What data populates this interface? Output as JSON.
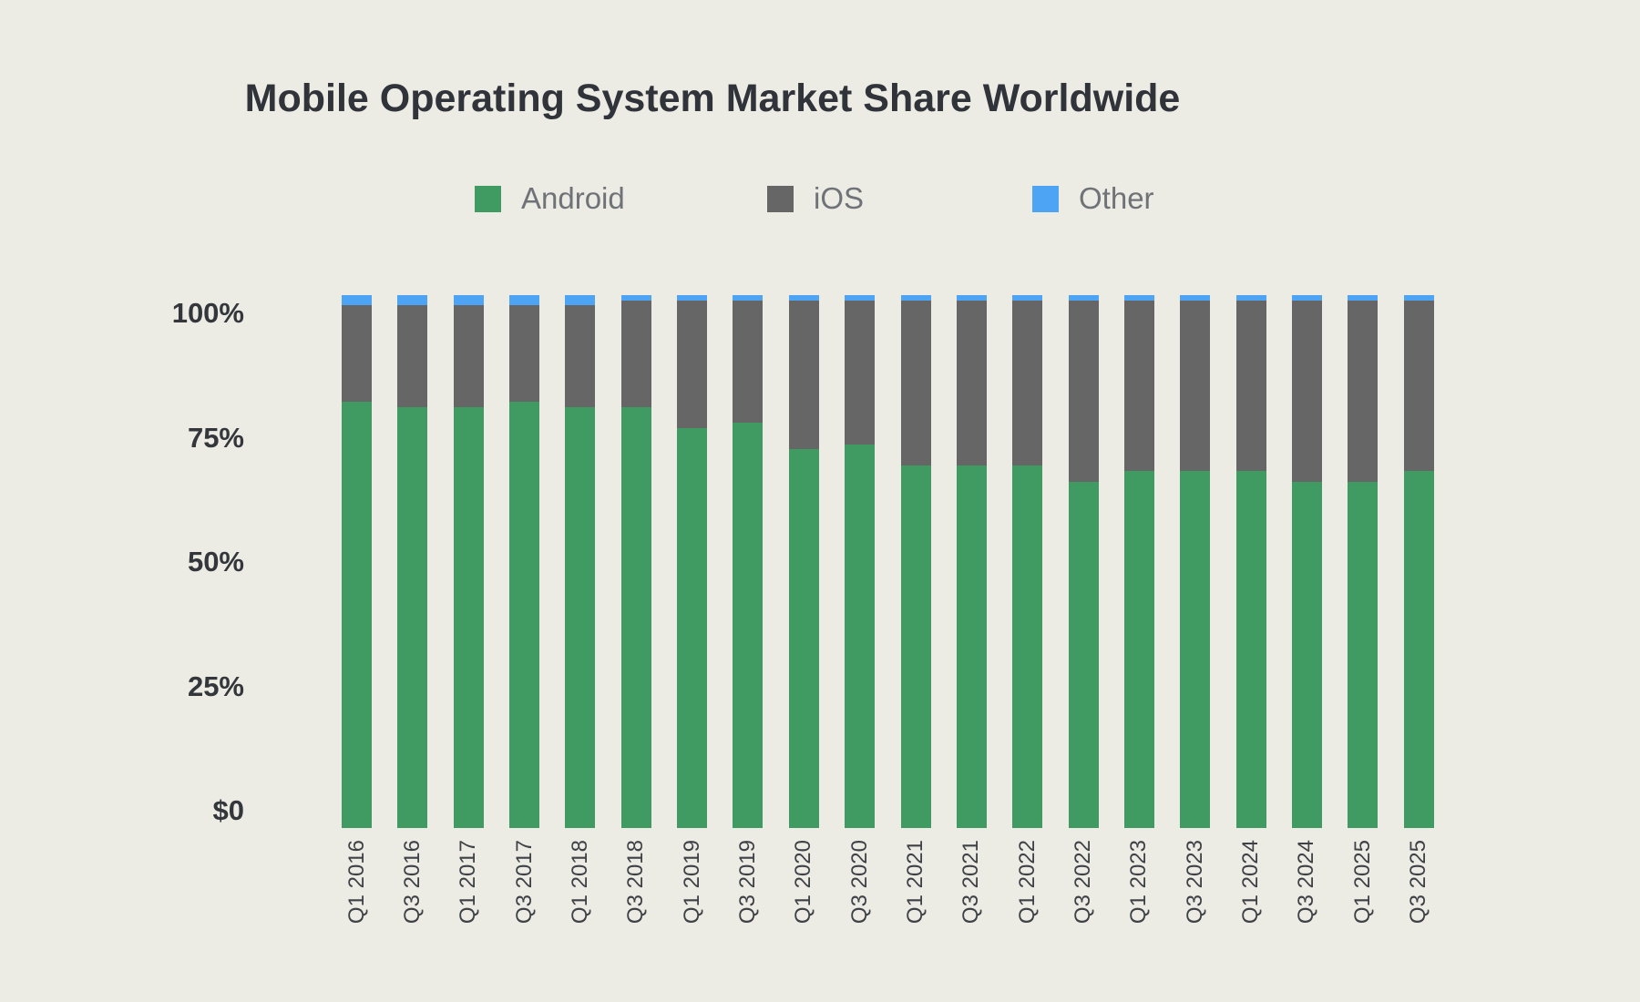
{
  "title": "Mobile Operating System Market Share Worldwide",
  "colors": {
    "background": "#ECEBE4",
    "android": "#3F9B62",
    "ios": "#666666",
    "other": "#4DA4F5"
  },
  "legend": [
    {
      "label": "Android",
      "color": "#3F9B62"
    },
    {
      "label": "iOS",
      "color": "#666666"
    },
    {
      "label": "Other",
      "color": "#4DA4F5"
    }
  ],
  "y_axis": {
    "ticks": [
      {
        "label": "100%",
        "value": 100
      },
      {
        "label": "75%",
        "value": 75
      },
      {
        "label": "50%",
        "value": 50
      },
      {
        "label": "25%",
        "value": 25
      },
      {
        "label": "$0",
        "value": 0
      }
    ]
  },
  "chart_data": {
    "type": "bar",
    "stacked": true,
    "title": "Mobile Operating System Market Share Worldwide",
    "xlabel": "",
    "ylabel": "",
    "ylim": [
      0,
      100
    ],
    "grid": false,
    "legend_position": "top",
    "y_tick_labels": [
      "$0",
      "25%",
      "50%",
      "75%",
      "100%"
    ],
    "categories": [
      "Q1 2016",
      "Q3 2016",
      "Q1 2017",
      "Q3 2017",
      "Q1 2018",
      "Q3 2018",
      "Q1 2019",
      "Q3 2019",
      "Q1 2020",
      "Q3 2020",
      "Q1 2021",
      "Q3 2021",
      "Q1 2022",
      "Q3 2022",
      "Q1 2023",
      "Q3 2023",
      "Q1 2024",
      "Q3 2024",
      "Q1 2025",
      "Q3 2025"
    ],
    "series": [
      {
        "name": "Android",
        "color": "#3F9B62",
        "values": [
          80,
          79,
          79,
          80,
          79,
          79,
          75,
          76,
          71,
          72,
          68,
          68,
          68,
          65,
          67,
          67,
          67,
          65,
          65,
          67
        ]
      },
      {
        "name": "iOS",
        "color": "#666666",
        "values": [
          18,
          19,
          19,
          18,
          19,
          20,
          24,
          23,
          28,
          27,
          31,
          31,
          31,
          34,
          32,
          32,
          32,
          34,
          34,
          32
        ]
      },
      {
        "name": "Other",
        "color": "#4DA4F5",
        "values": [
          2,
          2,
          2,
          2,
          2,
          1,
          1,
          1,
          1,
          1,
          1,
          1,
          1,
          1,
          1,
          1,
          1,
          1,
          1,
          1
        ]
      }
    ]
  }
}
